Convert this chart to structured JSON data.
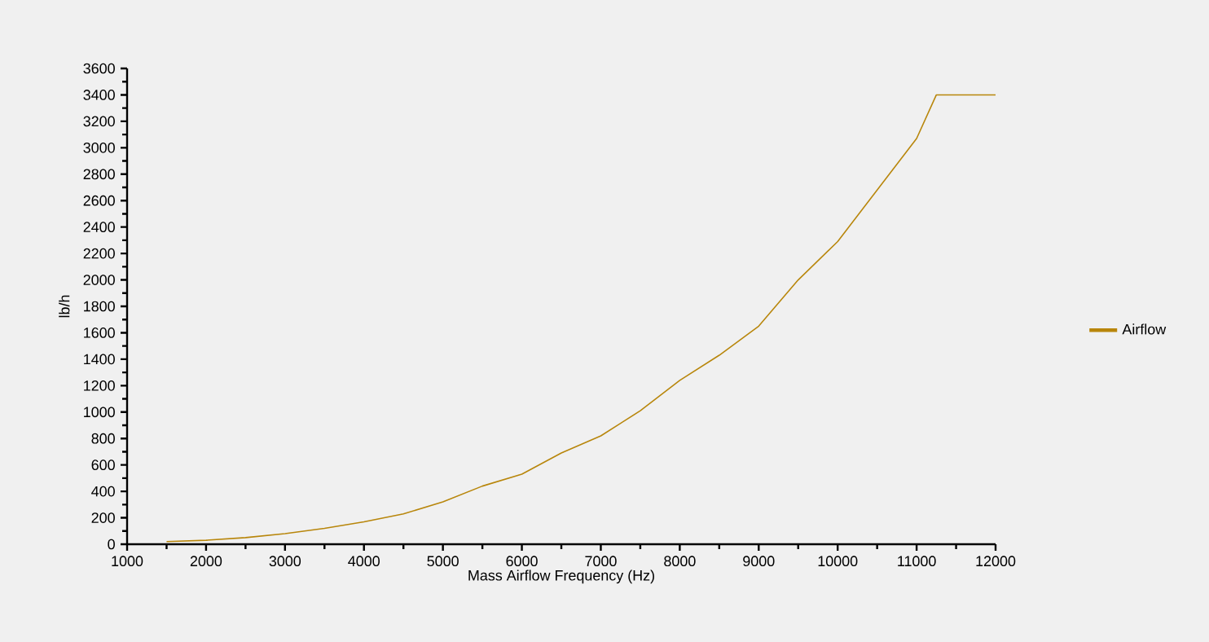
{
  "chart_data": {
    "type": "line",
    "xlabel": "Mass Airflow Frequency (Hz)",
    "ylabel": "lb/h",
    "xlim": [
      1000,
      12000
    ],
    "ylim": [
      0,
      3600
    ],
    "xticks": [
      1000,
      2000,
      3000,
      4000,
      5000,
      6000,
      7000,
      8000,
      9000,
      10000,
      11000,
      12000
    ],
    "yticks": [
      0,
      200,
      400,
      600,
      800,
      1000,
      1200,
      1400,
      1600,
      1800,
      2000,
      2200,
      2400,
      2600,
      2800,
      3000,
      3200,
      3400,
      3600
    ],
    "grid": false,
    "legend": "right",
    "marker": "none",
    "line_style": "solid",
    "series": [
      {
        "name": "Airflow",
        "color": "#b8860b",
        "x": [
          1500,
          2000,
          2500,
          3000,
          3500,
          4000,
          4500,
          5000,
          5500,
          6000,
          6500,
          7000,
          7500,
          8000,
          8500,
          9000,
          9500,
          10000,
          10500,
          11000,
          11250,
          12000
        ],
        "values": [
          20,
          30,
          50,
          80,
          120,
          170,
          230,
          320,
          440,
          530,
          690,
          820,
          1010,
          1240,
          1430,
          1650,
          2000,
          2290,
          2680,
          3070,
          3400,
          3400
        ]
      }
    ]
  }
}
